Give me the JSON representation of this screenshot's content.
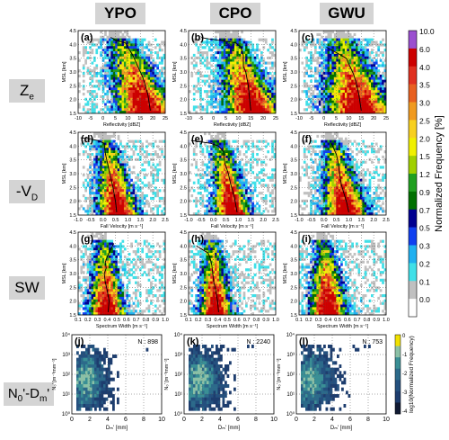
{
  "columns": [
    "YPO",
    "CPO",
    "GWU"
  ],
  "rows": {
    "ze": {
      "main": "Z",
      "sub": "e"
    },
    "vd": {
      "main": "-V",
      "sub": "D"
    },
    "sw": {
      "main": "SW",
      "sub": ""
    },
    "ndm": {
      "main": "N",
      "sub": "0",
      "rest": "'-D",
      "sub2": "m",
      "tail": "'"
    }
  },
  "panel_letters": [
    "(a)",
    "(b)",
    "(c)",
    "(d)",
    "(e)",
    "(f)",
    "(g)",
    "(h)",
    "(i)",
    "(j)",
    "(k)",
    "(l)"
  ],
  "colorbar": {
    "title": "Normalized Frequency [%]",
    "ticks": [
      "10.0",
      "6.0",
      "4.0",
      "3.5",
      "3.0",
      "2.5",
      "2.0",
      "1.5",
      "1.2",
      "0.9",
      "0.7",
      "0.5",
      "0.3",
      "0.2",
      "0.1",
      "0.0"
    ],
    "colors": [
      "#9b4fd0",
      "#cc0000",
      "#e03020",
      "#e86020",
      "#f09a20",
      "#f7d020",
      "#f0f000",
      "#a0d000",
      "#20a020",
      "#007000",
      "#000090",
      "#1040f0",
      "#20b0f0",
      "#40e0e8",
      "#c0c0c0",
      "#ffffff"
    ]
  },
  "small_colorbar": {
    "title": "log10(Normalized Frequency)",
    "ticks": [
      "0",
      "-1",
      "-2",
      "-3",
      "-4"
    ]
  },
  "counts": [
    "N : 898",
    "N : 2240",
    "N : 753"
  ],
  "chart_data": [
    {
      "type": "heatmap",
      "panel": "a",
      "xlabel": "Reflectivity [dBZ]",
      "ylabel": "MSL [km]",
      "xlim": [
        -10,
        25
      ],
      "ylim": [
        1.5,
        4.5
      ],
      "xticks": [
        "-10",
        "-5",
        "0",
        "5",
        "10",
        "15",
        "20",
        "25"
      ],
      "yticks": [
        "1.5",
        "2.0",
        "2.5",
        "3.0",
        "3.5",
        "4.0",
        "4.5"
      ],
      "median_profile": {
        "x": [
          3,
          4,
          5,
          7,
          9,
          10,
          12,
          14,
          16,
          18,
          19
        ],
        "y": [
          4.25,
          4.22,
          4.15,
          4.1,
          4.05,
          3.9,
          3.6,
          3.2,
          2.8,
          2.2,
          1.6
        ]
      }
    },
    {
      "type": "heatmap",
      "panel": "b",
      "xlabel": "Reflectivity [dBZ]",
      "ylabel": "MSL [km]",
      "xlim": [
        -10,
        25
      ],
      "ylim": [
        1.5,
        4.5
      ],
      "xticks": [
        "-10",
        "-5",
        "0",
        "5",
        "10",
        "15",
        "20",
        "25"
      ],
      "yticks": [
        "1.5",
        "2.0",
        "2.5",
        "3.0",
        "3.5",
        "4.0",
        "4.5"
      ],
      "median_profile": {
        "x": [
          -5,
          -2,
          2,
          6,
          9,
          11,
          12,
          12,
          13,
          14,
          15
        ],
        "y": [
          4.25,
          4.2,
          4.15,
          4.1,
          4.05,
          3.9,
          3.6,
          3.2,
          3.0,
          2.5,
          1.6
        ]
      }
    },
    {
      "type": "heatmap",
      "panel": "c",
      "xlabel": "Reflectivity [dBZ]",
      "ylabel": "MSL [km]",
      "xlim": [
        -10,
        25
      ],
      "ylim": [
        1.5,
        4.5
      ],
      "xticks": [
        "-10",
        "-5",
        "0",
        "5",
        "10",
        "15",
        "20",
        "25"
      ],
      "yticks": [
        "1.5",
        "2.0",
        "2.5",
        "3.0",
        "3.5",
        "4.0",
        "4.5"
      ],
      "median_profile": {
        "x": [
          1,
          3,
          5,
          7,
          9,
          10,
          11,
          12,
          13,
          14,
          15
        ],
        "y": [
          3.9,
          3.8,
          3.7,
          3.6,
          3.5,
          3.3,
          3.1,
          2.9,
          2.6,
          2.2,
          1.6
        ]
      }
    },
    {
      "type": "heatmap",
      "panel": "d",
      "xlabel": "Fall Velocity [m s⁻¹]",
      "ylabel": "MSL [km]",
      "xlim": [
        -1,
        2.5
      ],
      "ylim": [
        1.5,
        4.5
      ],
      "xticks": [
        "-1.0",
        "-0.5",
        "0.0",
        "0.5",
        "1.0",
        "1.5",
        "2.0",
        "2.5"
      ],
      "yticks": [
        "1.5",
        "2.0",
        "2.5",
        "3.0",
        "3.5",
        "4.0",
        "4.5"
      ],
      "median_profile": {
        "x": [
          -0.9,
          -0.5,
          -0.2,
          0.05,
          0.1,
          0.2,
          0.3,
          0.4,
          0.5,
          0.55
        ],
        "y": [
          4.3,
          4.25,
          4.2,
          4.1,
          3.7,
          3.3,
          2.9,
          2.5,
          2.0,
          1.6
        ]
      }
    },
    {
      "type": "heatmap",
      "panel": "e",
      "xlabel": "Fall Velocity [m s⁻¹]",
      "ylabel": "MSL [km]",
      "xlim": [
        -1,
        2.5
      ],
      "ylim": [
        1.5,
        4.5
      ],
      "xticks": [
        "-1.0",
        "-0.5",
        "0.0",
        "0.5",
        "1.0",
        "1.5",
        "2.0",
        "2.5"
      ],
      "yticks": [
        "1.5",
        "2.0",
        "2.5",
        "3.0",
        "3.5",
        "4.0",
        "4.5"
      ],
      "median_profile": {
        "x": [
          -0.9,
          -0.5,
          -0.1,
          0.2,
          0.4,
          0.45,
          0.6,
          0.7,
          0.85,
          0.95
        ],
        "y": [
          4.2,
          4.15,
          4.1,
          4.0,
          3.8,
          3.4,
          3.0,
          2.6,
          2.1,
          1.6
        ]
      }
    },
    {
      "type": "heatmap",
      "panel": "f",
      "xlabel": "Fall Velocity [m s⁻¹]",
      "ylabel": "MSL [km]",
      "xlim": [
        -1,
        2.5
      ],
      "ylim": [
        1.5,
        4.5
      ],
      "xticks": [
        "-1.0",
        "-0.5",
        "0.0",
        "0.5",
        "1.0",
        "1.5",
        "2.0",
        "2.5"
      ],
      "yticks": [
        "1.5",
        "2.0",
        "2.5",
        "3.0",
        "3.5",
        "4.0",
        "4.5"
      ],
      "median_profile": {
        "x": [
          0.3,
          0.4,
          0.5,
          0.55,
          0.6,
          0.65,
          0.7,
          0.8,
          0.9,
          1.0
        ],
        "y": [
          4.1,
          3.9,
          3.7,
          3.5,
          3.2,
          2.9,
          2.6,
          2.3,
          2.0,
          1.6
        ]
      }
    },
    {
      "type": "heatmap",
      "panel": "g",
      "xlabel": "Spectrum Width [m s⁻¹]",
      "ylabel": "MSL [km]",
      "xlim": [
        0.1,
        1.0
      ],
      "ylim": [
        1.5,
        4.5
      ],
      "xticks": [
        "0.1",
        "0.2",
        "0.3",
        "0.4",
        "0.5",
        "0.6",
        "0.7",
        "0.8",
        "0.9",
        "1.0"
      ],
      "yticks": [
        "1.5",
        "2.0",
        "2.5",
        "3.0",
        "3.5",
        "4.0",
        "4.5"
      ],
      "median_profile": {
        "x": [
          0.47,
          0.44,
          0.4,
          0.38,
          0.39,
          0.37,
          0.38,
          0.4,
          0.42,
          0.41
        ],
        "y": [
          4.1,
          3.9,
          3.6,
          3.4,
          3.2,
          3.0,
          2.7,
          2.4,
          2.0,
          1.6
        ]
      }
    },
    {
      "type": "heatmap",
      "panel": "h",
      "xlabel": "Spectrum Width [m s⁻¹]",
      "ylabel": "MSL [km]",
      "xlim": [
        0.1,
        1.0
      ],
      "ylim": [
        1.5,
        4.5
      ],
      "xticks": [
        "0.1",
        "0.2",
        "0.3",
        "0.4",
        "0.5",
        "0.6",
        "0.7",
        "0.8",
        "0.9",
        "1.0"
      ],
      "yticks": [
        "1.5",
        "2.0",
        "2.5",
        "3.0",
        "3.5",
        "4.0",
        "4.5"
      ],
      "median_profile": {
        "x": [
          0.18,
          0.25,
          0.3,
          0.32,
          0.34,
          0.35,
          0.36,
          0.38,
          0.4,
          0.41
        ],
        "y": [
          4.0,
          3.85,
          3.75,
          3.6,
          3.3,
          3.0,
          2.7,
          2.4,
          2.0,
          1.6
        ]
      }
    },
    {
      "type": "heatmap",
      "panel": "i",
      "xlabel": "Spectrum Width [m s⁻¹]",
      "ylabel": "MSL [km]",
      "xlim": [
        0.1,
        1.0
      ],
      "ylim": [
        1.5,
        4.5
      ],
      "xticks": [
        "0.1",
        "0.2",
        "0.3",
        "0.4",
        "0.5",
        "0.6",
        "0.7",
        "0.8",
        "0.9",
        "1.0"
      ],
      "yticks": [
        "1.5",
        "2.0",
        "2.5",
        "3.0",
        "3.5",
        "4.0",
        "4.5"
      ],
      "median_profile": null
    },
    {
      "type": "heatmap",
      "panel": "j",
      "xlabel": "Dₘ' [mm]",
      "ylabel": "N₀' [m⁻³mm⁻¹]",
      "xlim": [
        0,
        10
      ],
      "ylim": [
        0,
        4
      ],
      "xticks": [
        "0",
        "2",
        "4",
        "6",
        "8",
        "10"
      ],
      "yticks": [
        "10⁰",
        "10¹",
        "10²",
        "10³",
        "10⁴"
      ],
      "count": 898
    },
    {
      "type": "heatmap",
      "panel": "k",
      "xlabel": "Dₘ' [mm]",
      "ylabel": "N₀' [m⁻³mm⁻¹]",
      "xlim": [
        0,
        10
      ],
      "ylim": [
        0,
        4
      ],
      "xticks": [
        "0",
        "2",
        "4",
        "6",
        "8",
        "10"
      ],
      "yticks": [
        "10⁰",
        "10¹",
        "10²",
        "10³",
        "10⁴"
      ],
      "count": 2240
    },
    {
      "type": "heatmap",
      "panel": "l",
      "xlabel": "Dₘ' [mm]",
      "ylabel": "N₀' [m⁻³mm⁻¹]",
      "xlim": [
        0,
        10
      ],
      "ylim": [
        0,
        4
      ],
      "xticks": [
        "0",
        "2",
        "4",
        "6",
        "8",
        "10"
      ],
      "yticks": [
        "10⁰",
        "10¹",
        "10²",
        "10³",
        "10⁴"
      ],
      "count": 753
    }
  ]
}
